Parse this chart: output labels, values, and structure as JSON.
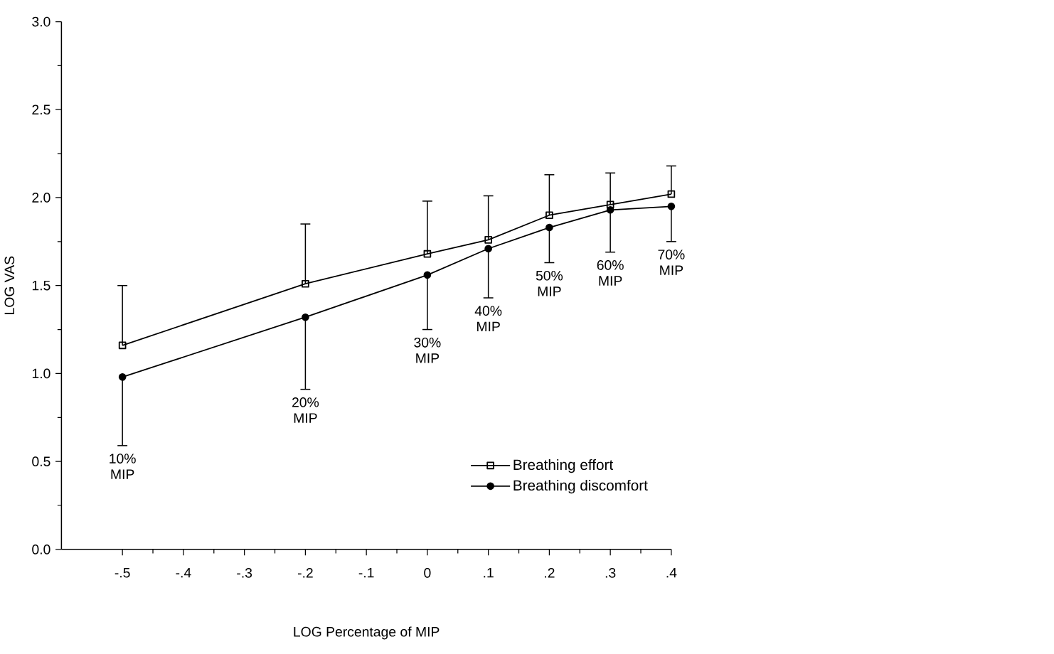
{
  "chart_data": {
    "type": "line",
    "xlabel": "LOG Percentage of MIP",
    "ylabel": "LOG VAS",
    "x": [
      -0.5,
      -0.2,
      0,
      0.1,
      0.2,
      0.3,
      0.4
    ],
    "series": [
      {
        "name": "Breathing effort",
        "color": "#000000",
        "marker": "square",
        "values": [
          1.16,
          1.51,
          1.68,
          1.76,
          1.9,
          1.96,
          2.02
        ],
        "errors": [
          [
            1.16,
            1.5
          ],
          [
            1.51,
            1.85
          ],
          [
            1.68,
            1.98
          ],
          [
            1.76,
            2.01
          ],
          [
            1.9,
            2.13
          ],
          [
            1.96,
            2.14
          ],
          [
            2.02,
            2.18
          ]
        ]
      },
      {
        "name": "Breathing discomfort",
        "color": "#000000",
        "marker": "circle",
        "values": [
          0.98,
          1.32,
          1.56,
          1.71,
          1.83,
          1.93,
          1.95
        ],
        "errors": [
          [
            0.59,
            0.98
          ],
          [
            0.91,
            1.32
          ],
          [
            1.25,
            1.56
          ],
          [
            1.43,
            1.71
          ],
          [
            1.63,
            1.83
          ],
          [
            1.69,
            1.93
          ],
          [
            1.75,
            1.95
          ]
        ]
      }
    ],
    "xlim": [
      -0.6,
      0.4
    ],
    "xticks": [
      {
        "value": -0.5,
        "label": "-.5"
      },
      {
        "value": -0.4,
        "label": "-.4"
      },
      {
        "value": -0.3,
        "label": "-.3"
      },
      {
        "value": -0.2,
        "label": "-.2"
      },
      {
        "value": -0.1,
        "label": "-.1"
      },
      0,
      {
        "value": 0.1,
        "label": ".1"
      },
      {
        "value": 0.2,
        "label": ".2"
      },
      {
        "value": 0.3,
        "label": ".3"
      },
      {
        "value": 0.4,
        "label": ".4"
      }
    ],
    "ylim": [
      0,
      3
    ],
    "yticks": [
      {
        "value": 0,
        "label": "0.0"
      },
      {
        "value": 0.5,
        "label": "0.5"
      },
      {
        "value": 1,
        "label": "1.0"
      },
      {
        "value": 1.5,
        "label": "1.5"
      },
      {
        "value": 2,
        "label": "2.0"
      },
      {
        "value": 2.5,
        "label": "2.5"
      },
      {
        "value": 3,
        "label": "3.0"
      }
    ],
    "annotations": [
      "10% MIP",
      "20% MIP",
      "30% MIP",
      "40% MIP",
      "50% MIP",
      "60% MIP",
      "70% MIP"
    ],
    "legend": "bottom right",
    "grid": false,
    "line_style": "solid"
  }
}
